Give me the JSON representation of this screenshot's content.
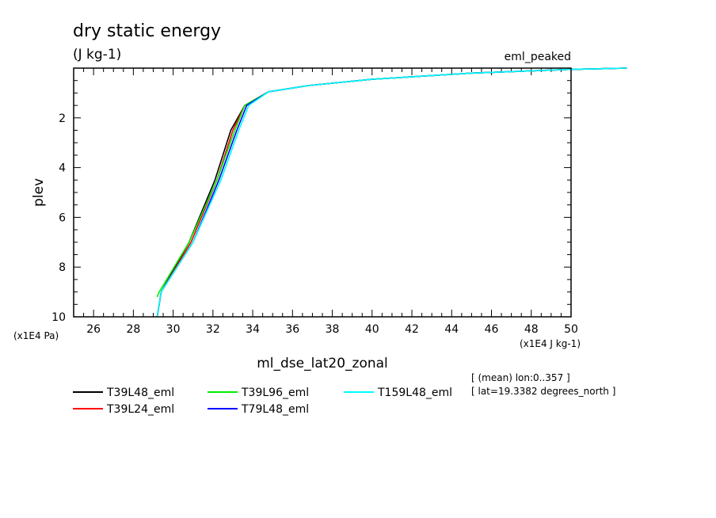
{
  "chart_data": {
    "type": "line",
    "title": "dry static energy",
    "title_units": "(J kg-1)",
    "experiment": "eml_peaked",
    "xlabel": "ml_dse_lat20_zonal",
    "ylabel": "plev",
    "x_multiplier": "(x1E4 J kg-1)",
    "y_multiplier": "(x1E4 Pa)",
    "xlim": [
      25,
      50
    ],
    "ylim": [
      10,
      0
    ],
    "x_ticks": [
      "26",
      "28",
      "30",
      "32",
      "34",
      "36",
      "38",
      "40",
      "42",
      "44",
      "46",
      "48",
      "50"
    ],
    "y_ticks": [
      "2",
      "4",
      "6",
      "8",
      "10"
    ],
    "info": [
      "[ (mean) lon:0..357 ]",
      "[ lat=19.3382 degrees_north ]"
    ],
    "legend_position": "bottom",
    "grid": false,
    "series": [
      {
        "name": "T39L48_eml",
        "color": "#000000",
        "points": [
          [
            29.2,
            10
          ],
          [
            29.4,
            9.0
          ],
          [
            30.8,
            7.0
          ],
          [
            32.1,
            4.5
          ],
          [
            32.9,
            2.5
          ],
          [
            33.6,
            1.5
          ],
          [
            34.8,
            0.95
          ],
          [
            36.8,
            0.7
          ],
          [
            40.0,
            0.45
          ],
          [
            45.0,
            0.2
          ],
          [
            50.0,
            0.05
          ],
          [
            52.8,
            0.0
          ]
        ]
      },
      {
        "name": "T39L24_eml",
        "color": "#ff0000",
        "points": [
          [
            29.2,
            10
          ],
          [
            29.4,
            9.0
          ],
          [
            30.9,
            7.0
          ],
          [
            32.2,
            4.5
          ],
          [
            33.0,
            2.5
          ],
          [
            33.6,
            1.5
          ],
          [
            34.8,
            0.95
          ],
          [
            36.8,
            0.7
          ],
          [
            40.0,
            0.45
          ],
          [
            45.0,
            0.2
          ],
          [
            50.0,
            0.05
          ],
          [
            52.8,
            0.0
          ]
        ]
      },
      {
        "name": "T39L96_eml",
        "color": "#00ee00",
        "points": [
          [
            29.2,
            9.2
          ],
          [
            29.3,
            9.0
          ],
          [
            30.8,
            7.0
          ],
          [
            32.2,
            4.5
          ],
          [
            33.1,
            2.5
          ],
          [
            33.6,
            1.5
          ],
          [
            34.8,
            0.95
          ],
          [
            36.8,
            0.7
          ],
          [
            40.0,
            0.45
          ],
          [
            45.0,
            0.2
          ],
          [
            50.0,
            0.05
          ],
          [
            52.8,
            0.0
          ]
        ]
      },
      {
        "name": "T79L48_eml",
        "color": "#0000ff",
        "points": [
          [
            29.2,
            10
          ],
          [
            29.4,
            9.0
          ],
          [
            31.0,
            7.0
          ],
          [
            32.3,
            4.5
          ],
          [
            33.2,
            2.5
          ],
          [
            33.7,
            1.5
          ],
          [
            34.8,
            0.95
          ],
          [
            36.8,
            0.7
          ],
          [
            40.0,
            0.45
          ],
          [
            45.0,
            0.2
          ],
          [
            50.0,
            0.05
          ],
          [
            52.8,
            0.0
          ]
        ]
      },
      {
        "name": "T159L48_eml",
        "color": "#00ffff",
        "points": [
          [
            29.2,
            10
          ],
          [
            29.4,
            9.0
          ],
          [
            31.0,
            7.0
          ],
          [
            32.4,
            4.5
          ],
          [
            33.3,
            2.5
          ],
          [
            33.8,
            1.5
          ],
          [
            34.8,
            0.95
          ],
          [
            36.8,
            0.7
          ],
          [
            40.0,
            0.45
          ],
          [
            45.0,
            0.2
          ],
          [
            50.0,
            0.05
          ],
          [
            52.8,
            0.0
          ]
        ]
      }
    ]
  }
}
